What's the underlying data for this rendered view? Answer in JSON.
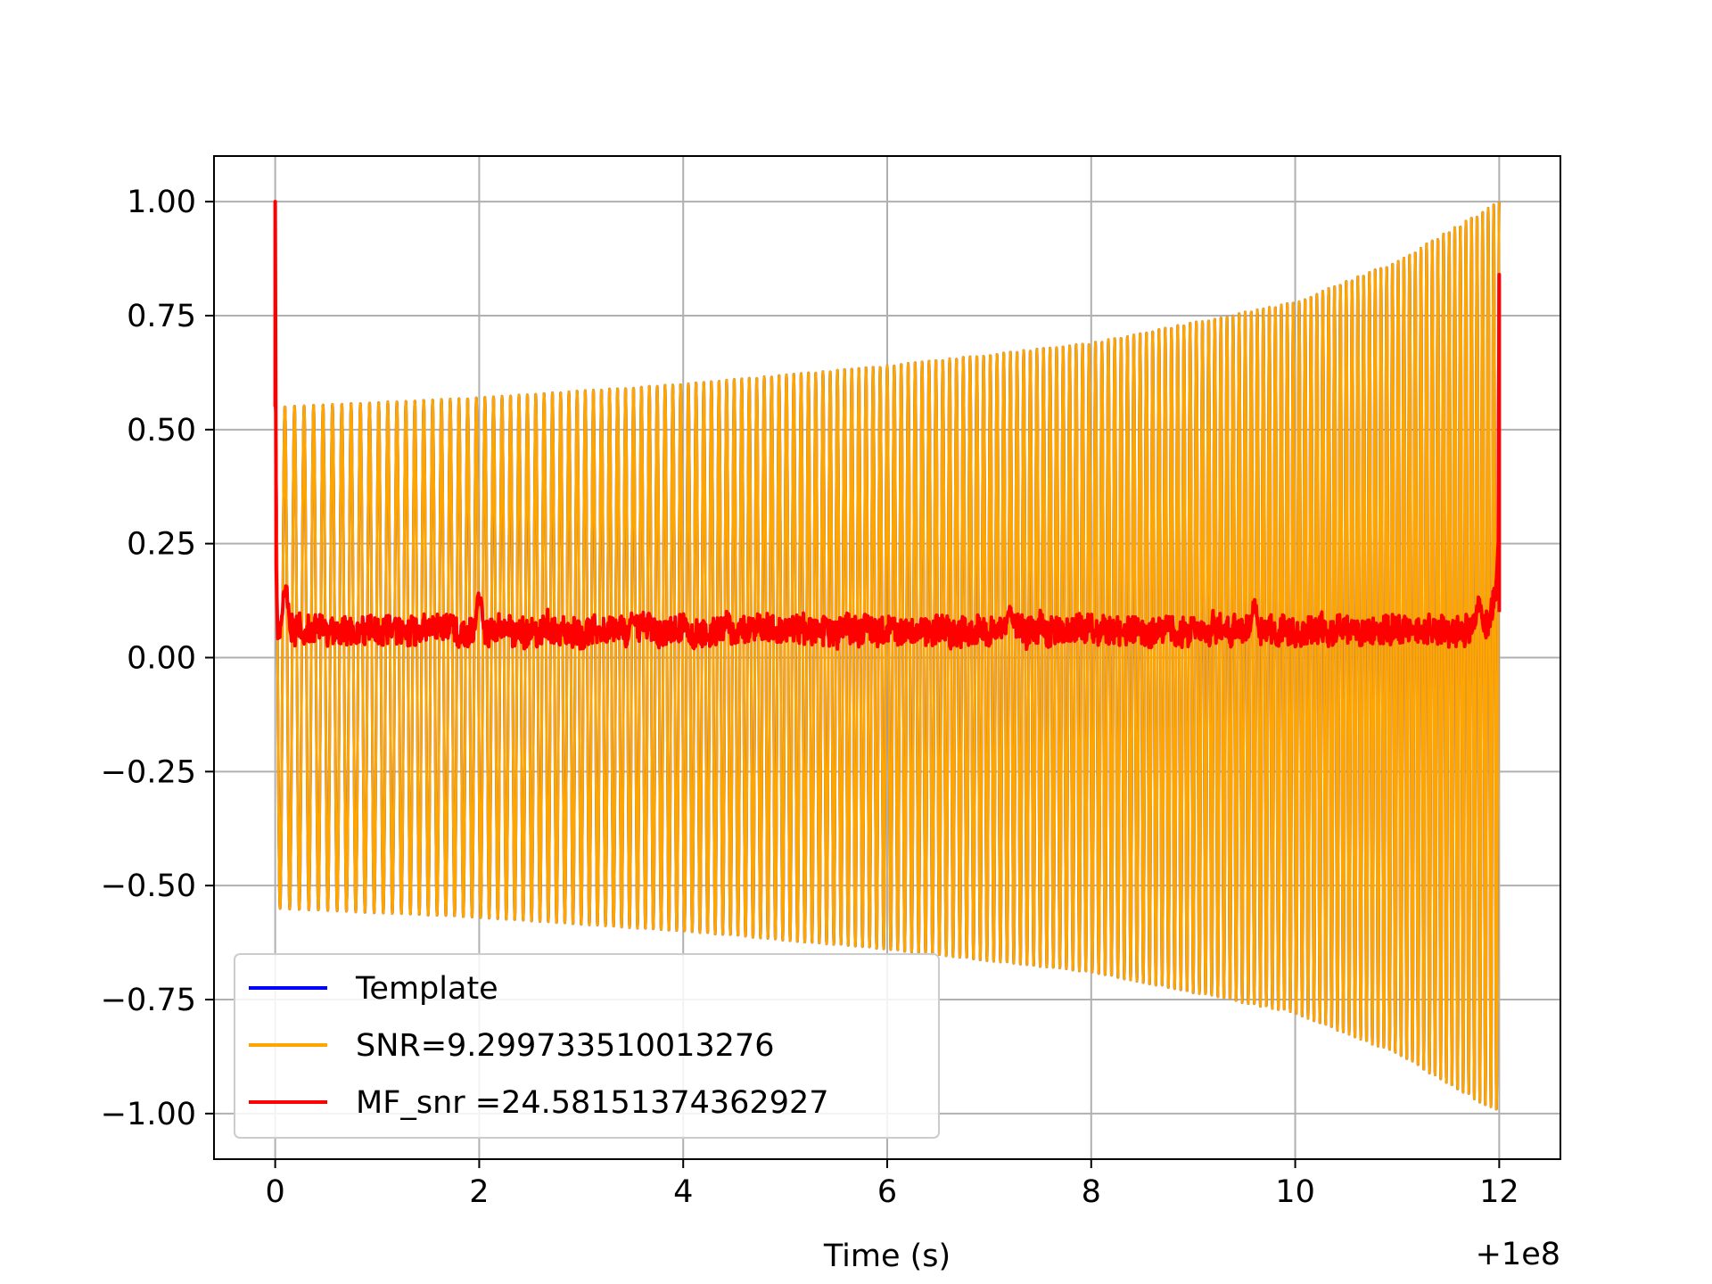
{
  "chart_data": {
    "type": "line",
    "title": "",
    "xlabel": "Time (s)",
    "ylabel": "",
    "x_offset_label": "+1e8",
    "xlim": [
      -0.6,
      12.6
    ],
    "ylim": [
      -1.1,
      1.1
    ],
    "grid": true,
    "legend_position": "lower-left",
    "x_ticks": [
      {
        "value": 0,
        "label": "0"
      },
      {
        "value": 2,
        "label": "2"
      },
      {
        "value": 4,
        "label": "4"
      },
      {
        "value": 6,
        "label": "6"
      },
      {
        "value": 8,
        "label": "8"
      },
      {
        "value": 10,
        "label": "10"
      },
      {
        "value": 12,
        "label": "12"
      }
    ],
    "y_ticks": [
      {
        "value": 1.0,
        "label": "1.00"
      },
      {
        "value": 0.75,
        "label": "0.75"
      },
      {
        "value": 0.5,
        "label": "0.50"
      },
      {
        "value": 0.25,
        "label": "0.25"
      },
      {
        "value": 0.0,
        "label": "0.00"
      },
      {
        "value": -0.25,
        "label": "−0.25"
      },
      {
        "value": -0.5,
        "label": "−0.50"
      },
      {
        "value": -0.75,
        "label": "−0.75"
      },
      {
        "value": -1.0,
        "label": "−1.00"
      }
    ],
    "series": [
      {
        "name": "Template",
        "color": "#0000ff",
        "kind": "chirp",
        "t_start": 0.0,
        "t_end": 12.0,
        "amplitude_envelope": [
          [
            0.0,
            0.55
          ],
          [
            2.0,
            0.57
          ],
          [
            4.0,
            0.6
          ],
          [
            6.0,
            0.64
          ],
          [
            8.0,
            0.69
          ],
          [
            10.0,
            0.78
          ],
          [
            11.0,
            0.87
          ],
          [
            12.0,
            1.0
          ]
        ],
        "cycles_per_second_start": 10.5,
        "cycles_per_second_end": 18.5
      },
      {
        "name": "SNR=9.299733510013276",
        "color": "#ffa500",
        "kind": "chirp",
        "t_start": 0.0,
        "t_end": 12.0,
        "amplitude_envelope": [
          [
            0.0,
            0.55
          ],
          [
            2.0,
            0.57
          ],
          [
            4.0,
            0.6
          ],
          [
            6.0,
            0.64
          ],
          [
            8.0,
            0.69
          ],
          [
            10.0,
            0.78
          ],
          [
            11.0,
            0.87
          ],
          [
            12.0,
            1.0
          ]
        ],
        "cycles_per_second_start": 10.5,
        "cycles_per_second_end": 18.5
      },
      {
        "name": "MF_snr =24.58151374362927",
        "color": "#ff0000",
        "kind": "matched-filter",
        "t_start": 0.0,
        "t_end": 12.0,
        "start_peak": 1.0,
        "start_level": 0.55,
        "end_peak": 0.84,
        "baseline_min": 0.0,
        "baseline_max": 0.12,
        "bumps": [
          [
            0.1,
            0.17
          ],
          [
            2.0,
            0.15
          ],
          [
            3.5,
            0.1
          ],
          [
            7.2,
            0.12
          ],
          [
            9.6,
            0.13
          ],
          [
            11.8,
            0.13
          ]
        ]
      }
    ]
  }
}
